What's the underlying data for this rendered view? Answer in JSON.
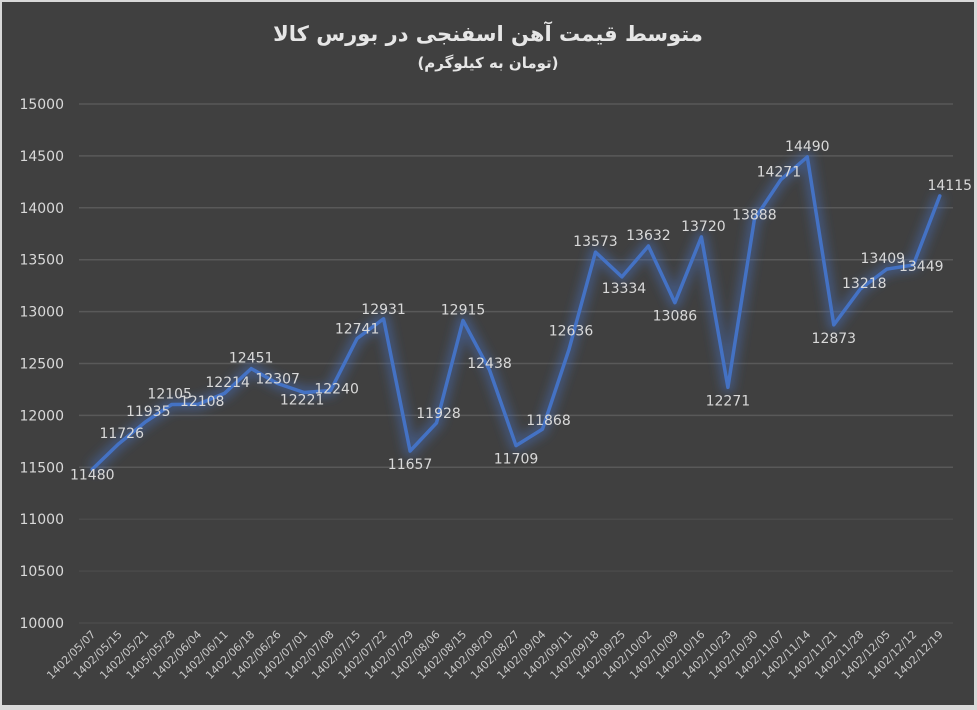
{
  "chart": {
    "title": "متوسط قیمت آهن اسفنجی در بورس کالا",
    "subtitle": "(تومان به کیلوگرم)"
  },
  "colors": {
    "background": "#404040",
    "gridline": "#595959",
    "line": "#4472c4",
    "text": "#d9d9d9"
  },
  "chart_data": {
    "type": "line",
    "title": "متوسط قیمت آهن اسفنجی در بورس کالا",
    "subtitle": "(تومان به کیلوگرم)",
    "xlabel": "",
    "ylabel": "",
    "ylim": [
      10000,
      15000
    ],
    "yticks": [
      10000,
      10500,
      11000,
      11500,
      12000,
      12500,
      13000,
      13500,
      14000,
      14500,
      15000
    ],
    "grid": true,
    "legend": "none",
    "data_labels": true,
    "categories": [
      "1402/05/07",
      "1402/05/15",
      "1402/05/21",
      "1405/05/28",
      "1402/06/04",
      "1402/06/11",
      "1402/06/18",
      "1402/06/26",
      "1402/07/01",
      "1402/07/08",
      "1402/07/15",
      "1402/07/22",
      "1402/07/29",
      "1402/08/06",
      "1402/08/15",
      "1402/08/20",
      "1402/08/27",
      "1402/09/04",
      "1402/09/11",
      "1402/09/18",
      "1402/09/25",
      "1402/10/02",
      "1402/10/09",
      "1402/10/16",
      "1402/10/23",
      "1402/10/30",
      "1402/11/07",
      "1402/11/14",
      "1402/11/21",
      "1402/11/28",
      "1402/12/05",
      "1402/12/12",
      "1402/12/19"
    ],
    "series": [
      {
        "name": "متوسط قیمت",
        "color": "#4472c4",
        "values": [
          11480,
          11726,
          11935,
          12105,
          12108,
          12214,
          12451,
          12307,
          12221,
          12240,
          12741,
          12931,
          11657,
          11928,
          12915,
          12438,
          11709,
          11868,
          12636,
          13573,
          13334,
          13632,
          13086,
          13720,
          12271,
          13888,
          14271,
          14490,
          12873,
          13218,
          13409,
          13449,
          14115
        ]
      }
    ]
  }
}
